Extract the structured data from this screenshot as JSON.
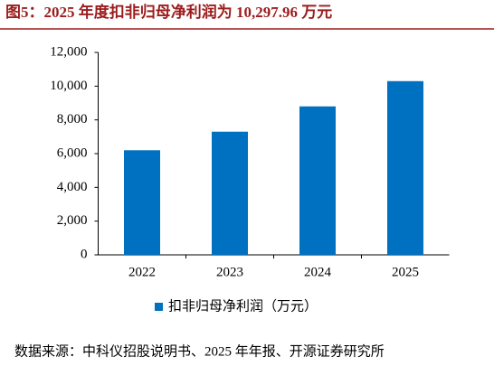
{
  "chart_data": {
    "type": "bar",
    "title": "图5：2025 年度扣非归母净利润为 10,297.96 万元",
    "categories": [
      "2022",
      "2023",
      "2024",
      "2025"
    ],
    "series": [
      {
        "name": "扣非归母净利润（万元）",
        "color": "#0070c0",
        "values": [
          6200,
          7300,
          8800,
          10297.96
        ]
      }
    ],
    "ylim": [
      0,
      12000
    ],
    "yticks": [
      0,
      {
        "value": 2000,
        "label": "2,000"
      },
      {
        "value": 4000,
        "label": "4,000"
      },
      {
        "value": 6000,
        "label": "6,000"
      },
      {
        "value": 8000,
        "label": "8,000"
      },
      {
        "value": 10000,
        "label": "10,000"
      },
      {
        "value": 12000,
        "label": "12,000"
      }
    ],
    "legend": "bottom",
    "source": "数据来源：中科仪招股说明书、2025 年年报、开源证券研究所"
  }
}
